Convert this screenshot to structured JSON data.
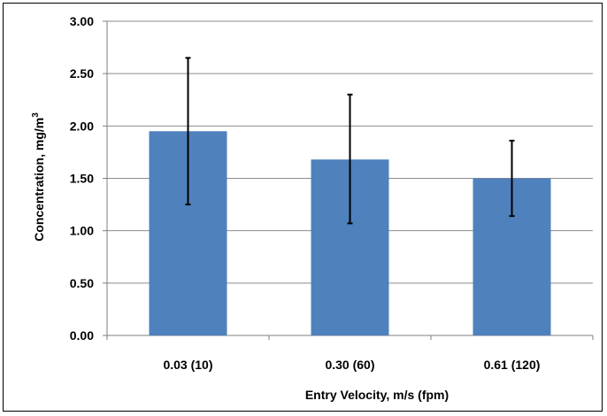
{
  "chart_data": {
    "type": "bar",
    "categories": [
      "0.03  (10)",
      "0.30 (60)",
      "0.61 (120)"
    ],
    "values": [
      1.95,
      1.68,
      1.5
    ],
    "error": [
      [
        1.25,
        2.65
      ],
      [
        1.07,
        2.3
      ],
      [
        1.14,
        1.86
      ]
    ],
    "ylim": [
      0,
      3
    ],
    "yticks": [
      "0.00",
      "0.50",
      "1.00",
      "1.50",
      "2.00",
      "2.50",
      "3.00"
    ],
    "xlabel": "Entry Velocity, m/s (fpm)",
    "ylabel": "Concentration, mg/m",
    "ylabel_superscript": "3",
    "grid": true,
    "bar_color": "#4f81bd"
  }
}
